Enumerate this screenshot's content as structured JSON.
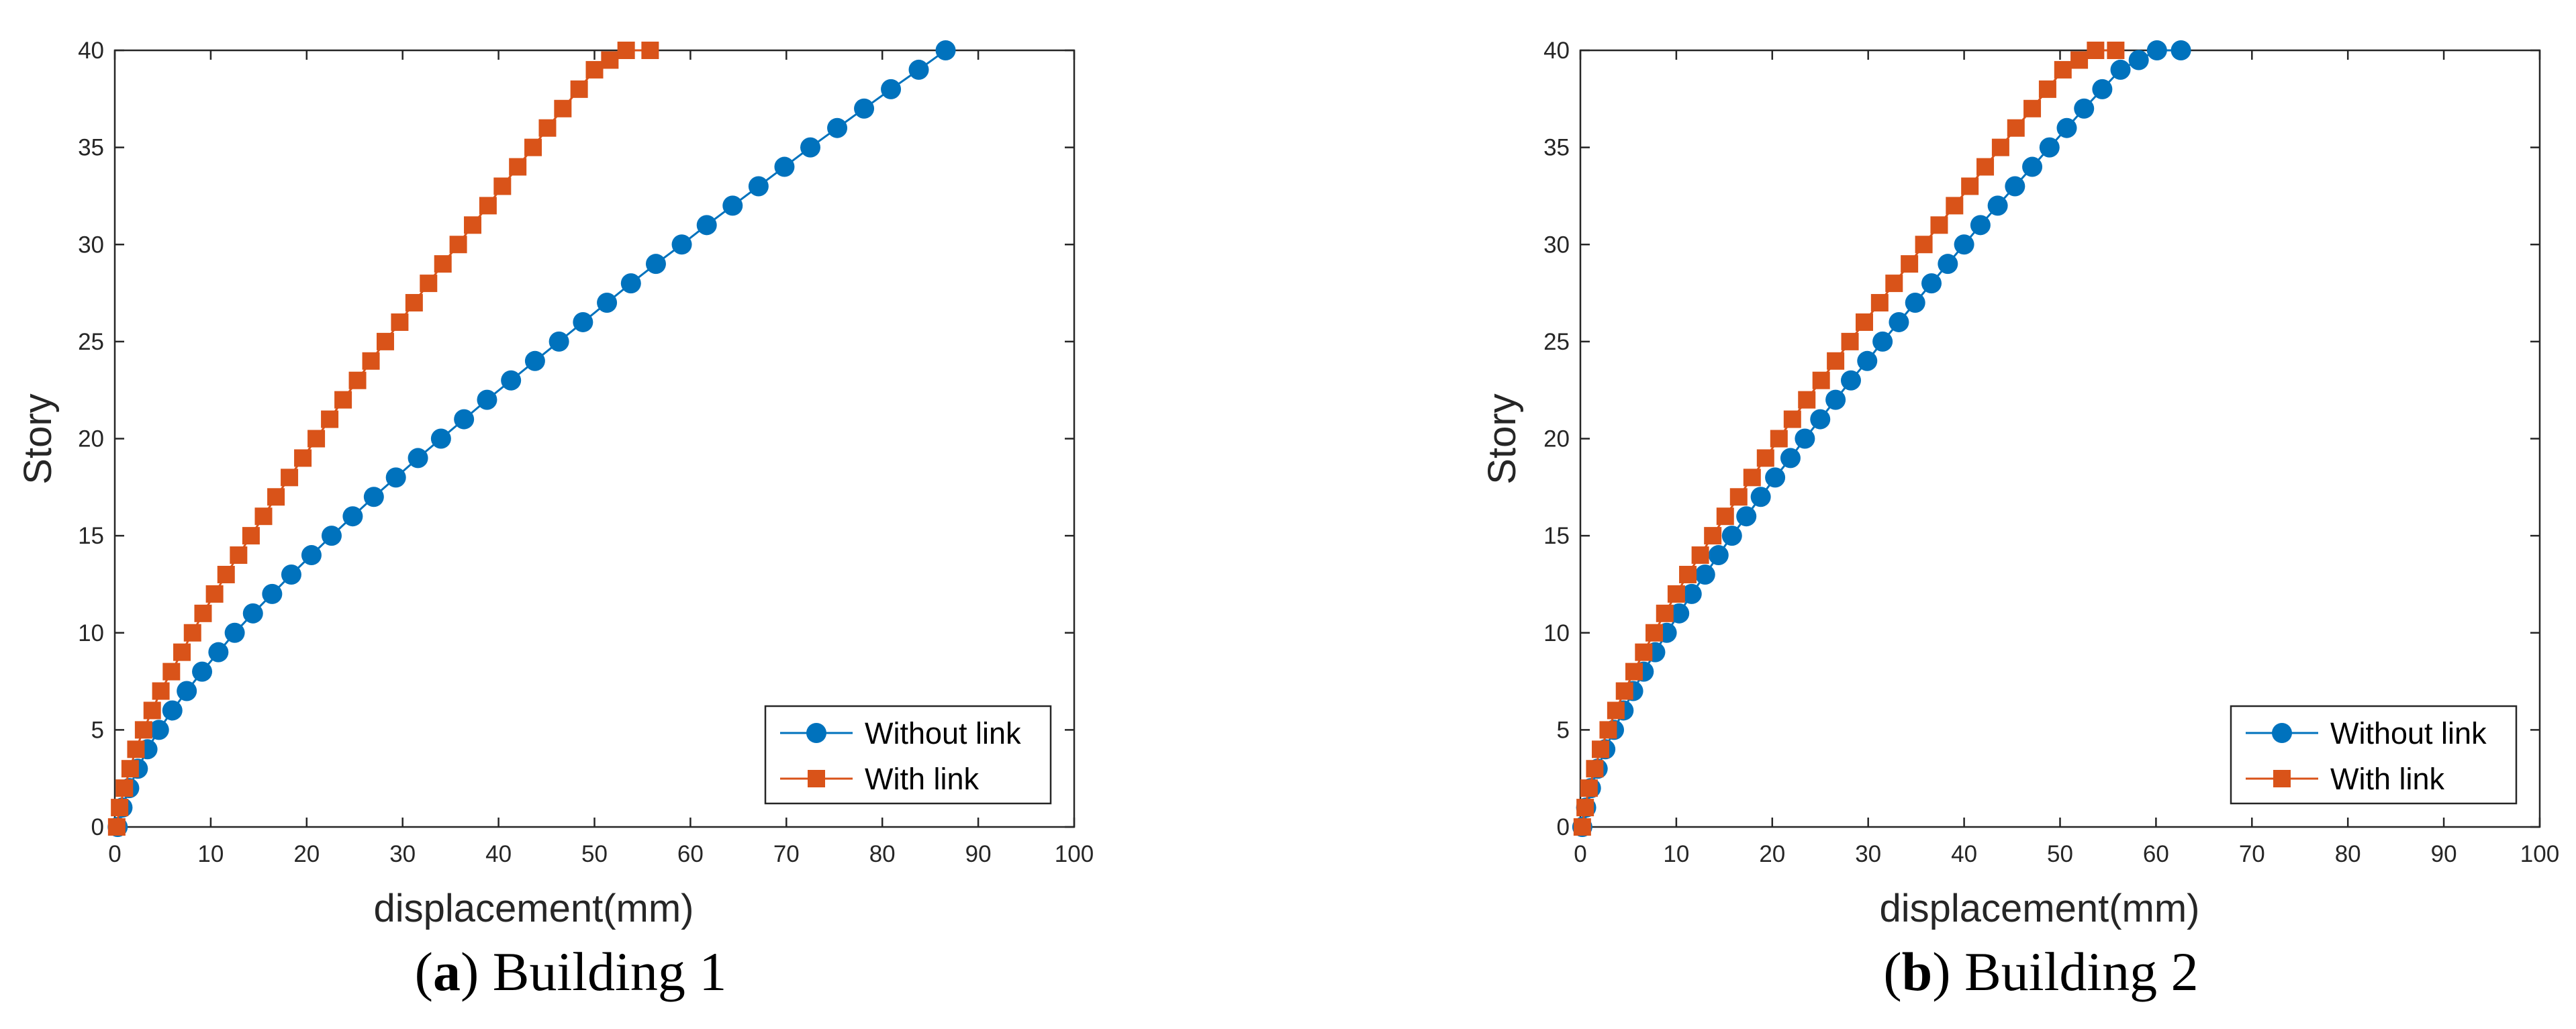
{
  "colors": {
    "without_link": "#0072BD",
    "with_link": "#D95319",
    "axes": "#262626",
    "legend_box": "#262626"
  },
  "chart_data": [
    {
      "id": "a",
      "type": "line",
      "caption": {
        "letter": "a",
        "open": "(",
        "close": ")",
        "text": " Building 1"
      },
      "xlabel": "displacement(mm)",
      "ylabel": "Story",
      "xlim": [
        0,
        100
      ],
      "ylim": [
        0,
        40
      ],
      "xticks": [
        0,
        10,
        20,
        30,
        40,
        50,
        60,
        70,
        80,
        90,
        100
      ],
      "yticks": [
        0,
        5,
        10,
        15,
        20,
        25,
        30,
        35,
        40
      ],
      "legend_position": "bottom-right",
      "series": [
        {
          "name": "Without link",
          "marker": "circle",
          "color": "#0072BD",
          "x": [
            0.3,
            0.8,
            1.5,
            2.4,
            3.4,
            4.6,
            6.0,
            7.5,
            9.1,
            10.8,
            12.5,
            14.4,
            16.4,
            18.4,
            20.5,
            22.6,
            24.8,
            27.0,
            29.3,
            31.6,
            34.0,
            36.4,
            38.8,
            41.3,
            43.8,
            46.3,
            48.8,
            51.3,
            53.8,
            56.4,
            59.1,
            61.7,
            64.4,
            67.1,
            69.8,
            72.5,
            75.3,
            78.1,
            80.9,
            83.8,
            86.6
          ],
          "y": [
            0,
            1,
            2,
            3,
            4,
            5,
            6,
            7,
            8,
            9,
            10,
            11,
            12,
            13,
            14,
            15,
            16,
            17,
            18,
            19,
            20,
            21,
            22,
            23,
            24,
            25,
            26,
            27,
            28,
            29,
            30,
            31,
            32,
            33,
            34,
            35,
            36,
            37,
            38,
            39,
            40
          ]
        },
        {
          "name": "With link",
          "marker": "square",
          "color": "#D95319",
          "x": [
            0.2,
            0.5,
            1.0,
            1.6,
            2.2,
            3.0,
            3.9,
            4.8,
            5.9,
            7.0,
            8.1,
            9.2,
            10.4,
            11.6,
            12.9,
            14.2,
            15.5,
            16.8,
            18.2,
            19.6,
            21.0,
            22.4,
            23.8,
            25.3,
            26.7,
            28.2,
            29.7,
            31.2,
            32.7,
            34.2,
            35.8,
            37.3,
            38.9,
            40.4,
            42.0,
            43.6,
            45.1,
            46.7,
            48.4,
            50.0,
            51.6,
            53.3,
            55.8
          ],
          "y": [
            0,
            1,
            2,
            3,
            4,
            5,
            6,
            7,
            8,
            9,
            10,
            11,
            12,
            13,
            14,
            15,
            16,
            17,
            18,
            19,
            20,
            21,
            22,
            23,
            24,
            25,
            26,
            27,
            28,
            29,
            30,
            31,
            32,
            33,
            34,
            35,
            36,
            37,
            38,
            39,
            39.5,
            40,
            40
          ]
        }
      ]
    },
    {
      "id": "b",
      "type": "line",
      "caption": {
        "letter": "b",
        "open": "(",
        "close": ")",
        "text": " Building 2"
      },
      "xlabel": "displacement(mm)",
      "ylabel": "Story",
      "xlim": [
        0,
        100
      ],
      "ylim": [
        0,
        40
      ],
      "xticks": [
        0,
        10,
        20,
        30,
        40,
        50,
        60,
        70,
        80,
        90,
        100
      ],
      "yticks": [
        0,
        5,
        10,
        15,
        20,
        25,
        30,
        35,
        40
      ],
      "legend_position": "bottom-right",
      "series": [
        {
          "name": "Without link",
          "marker": "circle",
          "color": "#0072BD",
          "x": [
            0.2,
            0.6,
            1.1,
            1.8,
            2.6,
            3.5,
            4.5,
            5.5,
            6.6,
            7.8,
            9.0,
            10.3,
            11.6,
            13.0,
            14.4,
            15.8,
            17.3,
            18.8,
            20.3,
            21.9,
            23.4,
            25.0,
            26.6,
            28.2,
            29.9,
            31.5,
            33.2,
            34.9,
            36.6,
            38.3,
            40.0,
            41.7,
            43.5,
            45.3,
            47.1,
            48.9,
            50.7,
            52.5,
            54.4,
            56.3,
            58.2,
            60.1,
            62.6
          ],
          "y": [
            0,
            1,
            2,
            3,
            4,
            5,
            6,
            7,
            8,
            9,
            10,
            11,
            12,
            13,
            14,
            15,
            16,
            17,
            18,
            19,
            20,
            21,
            22,
            23,
            24,
            25,
            26,
            27,
            28,
            29,
            30,
            31,
            32,
            33,
            34,
            35,
            36,
            37,
            38,
            39,
            39.5,
            40,
            40
          ]
        },
        {
          "name": "With link",
          "marker": "square",
          "color": "#D95319",
          "x": [
            0.2,
            0.5,
            0.9,
            1.5,
            2.1,
            2.9,
            3.7,
            4.6,
            5.6,
            6.6,
            7.7,
            8.8,
            10.0,
            11.2,
            12.5,
            13.8,
            15.1,
            16.5,
            17.9,
            19.3,
            20.7,
            22.1,
            23.6,
            25.1,
            26.6,
            28.1,
            29.6,
            31.2,
            32.7,
            34.3,
            35.8,
            37.4,
            39.0,
            40.6,
            42.2,
            43.8,
            45.4,
            47.1,
            48.7,
            50.3,
            52.0,
            53.7,
            55.8
          ],
          "y": [
            0,
            1,
            2,
            3,
            4,
            5,
            6,
            7,
            8,
            9,
            10,
            11,
            12,
            13,
            14,
            15,
            16,
            17,
            18,
            19,
            20,
            21,
            22,
            23,
            24,
            25,
            26,
            27,
            28,
            29,
            30,
            31,
            32,
            33,
            34,
            35,
            36,
            37,
            38,
            39,
            39.5,
            40,
            40
          ]
        }
      ]
    }
  ]
}
